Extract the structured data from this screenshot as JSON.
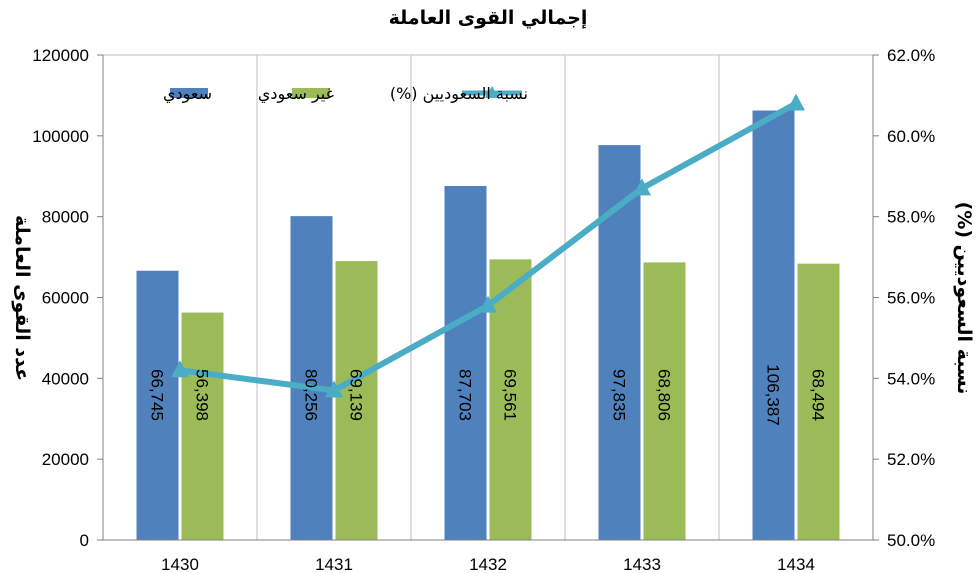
{
  "chart_data": {
    "type": "bar",
    "title": "إجمالي القوى العاملة",
    "ylabel_left": "عدد القوى العاملة",
    "ylabel_right": "نسبة السعوديين (%)",
    "categories": [
      "1430",
      "1431",
      "1432",
      "1433",
      "1434"
    ],
    "series": [
      {
        "name": "سعودي",
        "type": "bar",
        "color": "#4f81bd",
        "values": [
          66745,
          80256,
          87703,
          97835,
          106387
        ],
        "labels": [
          "66,745",
          "80,256",
          "87,703",
          "97,835",
          "106,387"
        ]
      },
      {
        "name": "غير سعودي",
        "type": "bar",
        "color": "#9bbb59",
        "values": [
          56398,
          69139,
          69561,
          68806,
          68494
        ],
        "labels": [
          "56,398",
          "69,139",
          "69,561",
          "68,806",
          "68,494"
        ]
      },
      {
        "name": "نسبة السعوديين (%)",
        "type": "line",
        "axis": "right",
        "color": "#4bacc6",
        "values": [
          54.2,
          53.7,
          55.8,
          58.7,
          60.8
        ]
      }
    ],
    "ylim_left": [
      0,
      120000
    ],
    "yticks_left": [
      "0",
      "20000",
      "40000",
      "60000",
      "80000",
      "100000",
      "120000"
    ],
    "ylim_right": [
      50,
      62
    ],
    "yticks_right": [
      "50.0%",
      "52.0%",
      "54.0%",
      "56.0%",
      "58.0%",
      "60.0%",
      "62.0%"
    ],
    "grid": "vertical",
    "legend": "top"
  }
}
